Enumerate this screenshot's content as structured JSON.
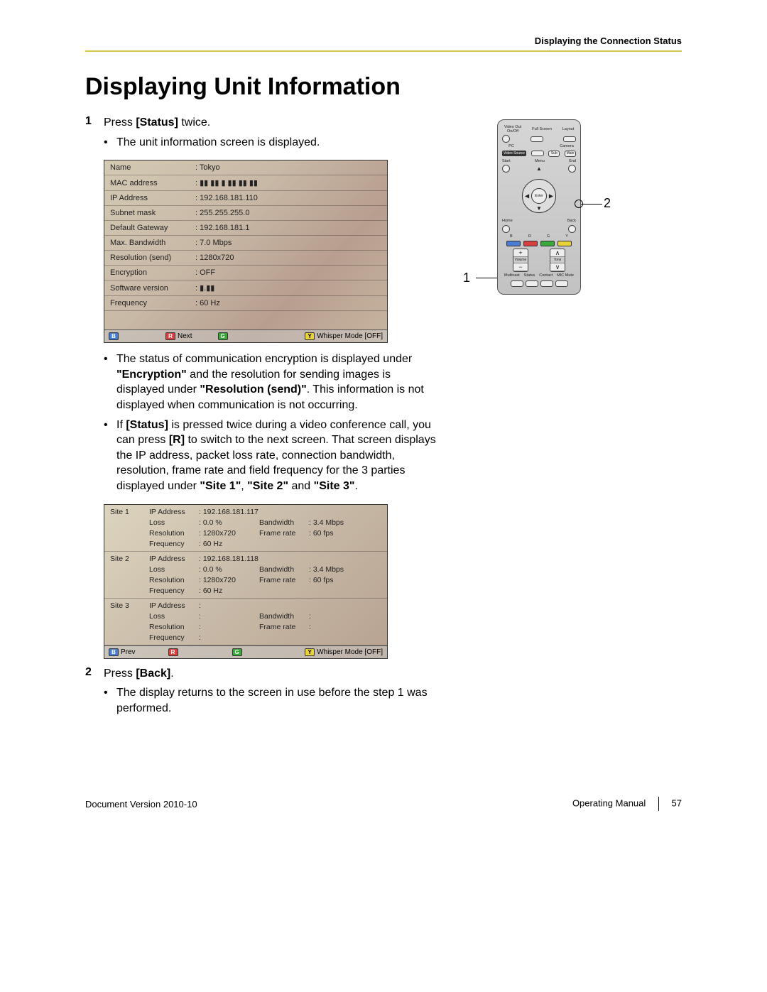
{
  "header": {
    "right": "Displaying the Connection Status"
  },
  "title": "Displaying Unit Information",
  "steps": {
    "s1_num": "1",
    "s1_text_a": "Press ",
    "s1_bold": "[Status]",
    "s1_text_b": " twice.",
    "s1_b1": "The unit information screen is displayed.",
    "s2_num": "2",
    "s2_text_a": "Press ",
    "s2_bold": "[Back]",
    "s2_text_b": ".",
    "s2_b1": "The display returns to the screen in use before the step 1 was performed."
  },
  "notes": {
    "n1_a": "The status of communication encryption is displayed under ",
    "n1_b1": "\"Encryption\"",
    "n1_c": " and the resolution for sending images is displayed under ",
    "n1_b2": "\"Resolution (send)\"",
    "n1_d": ". This information is not displayed when communication is not occurring.",
    "n2_a": "If ",
    "n2_b1": "[Status]",
    "n2_c": " is pressed twice during a video conference call, you can press ",
    "n2_b2": "[R]",
    "n2_d": " to switch to the next screen. That screen displays the IP address, packet loss rate, connection bandwidth, resolution, frame rate and field frequency for the 3 parties displayed under ",
    "n2_b3": "\"Site 1\"",
    "n2_e": ", ",
    "n2_b4": "\"Site 2\"",
    "n2_f": " and ",
    "n2_b5": "\"Site 3\"",
    "n2_g": "."
  },
  "unit_table": {
    "rows": [
      [
        "Name",
        ": Tokyo"
      ],
      [
        "MAC address",
        ": ▮▮ ▮▮ ▮ ▮▮ ▮▮ ▮▮"
      ],
      [
        "IP Address",
        ": 192.168.181.110"
      ],
      [
        "Subnet mask",
        ": 255.255.255.0"
      ],
      [
        "Default Gateway",
        ": 192.168.181.1"
      ],
      [
        "Max. Bandwidth",
        ": 7.0 Mbps"
      ],
      [
        "Resolution (send)",
        ": 1280x720"
      ],
      [
        "Encryption",
        ": OFF"
      ],
      [
        "Software version",
        ": ▮.▮▮"
      ],
      [
        "Frequency",
        ": 60 Hz"
      ]
    ],
    "bottombar": {
      "b": "B",
      "r": "R",
      "r_label": "Next",
      "g": "G",
      "y": "Y",
      "y_label": "Whisper Mode [OFF]"
    }
  },
  "sites": {
    "blocks": [
      {
        "name": "Site 1",
        "ip_k": "IP Address",
        "ip_v": ": 192.168.181.117",
        "loss_k": "Loss",
        "loss_v": ": 0.0 %",
        "bw_k": "Bandwidth",
        "bw_v": ": 3.4 Mbps",
        "res_k": "Resolution",
        "res_v": ": 1280x720",
        "fr_k": "Frame rate",
        "fr_v": ": 60 fps",
        "freq_k": "Frequency",
        "freq_v": ": 60 Hz"
      },
      {
        "name": "Site 2",
        "ip_k": "IP Address",
        "ip_v": ": 192.168.181.118",
        "loss_k": "Loss",
        "loss_v": ": 0.0 %",
        "bw_k": "Bandwidth",
        "bw_v": ": 3.4 Mbps",
        "res_k": "Resolution",
        "res_v": ": 1280x720",
        "fr_k": "Frame rate",
        "fr_v": ": 60 fps",
        "freq_k": "Frequency",
        "freq_v": ": 60 Hz"
      },
      {
        "name": "Site 3",
        "ip_k": "IP Address",
        "ip_v": ":",
        "loss_k": "Loss",
        "loss_v": ":",
        "bw_k": "Bandwidth",
        "bw_v": ":",
        "res_k": "Resolution",
        "res_v": ":",
        "fr_k": "Frame rate",
        "fr_v": ":",
        "freq_k": "Frequency",
        "freq_v": ":"
      }
    ],
    "bottombar": {
      "b": "B",
      "b_label": "Prev",
      "r": "R",
      "g": "G",
      "y": "Y",
      "y_label": "Whisper Mode [OFF]"
    }
  },
  "remote": {
    "top": {
      "videoout": "Video Out\nOn/Off",
      "fullscreen": "Full Screen",
      "layout": "Layout",
      "pc": "PC",
      "camera": "Camera",
      "videosrc": "Video\nSource",
      "sub": "Sub",
      "main": "Main"
    },
    "nav": {
      "start": "Start",
      "menu": "Menu",
      "end": "End",
      "home": "Home",
      "enter": "Enter",
      "back": "Back"
    },
    "colors": {
      "b": "B",
      "r": "R",
      "g": "G",
      "y": "Y"
    },
    "vt": {
      "vol": "Volume",
      "tone": "Tone",
      "plus": "+",
      "minus": "−",
      "up": "∧",
      "dn": "∨"
    },
    "bot": {
      "multicast": "Multicast",
      "status": "Status",
      "contact": "Contact",
      "micmute": "MIC Mute"
    }
  },
  "callouts": {
    "c1": "1",
    "c2": "2"
  },
  "footer": {
    "left_a": "Document Version  ",
    "left_b": "2010-10",
    "right_a": "Operating Manual",
    "page": "57"
  }
}
